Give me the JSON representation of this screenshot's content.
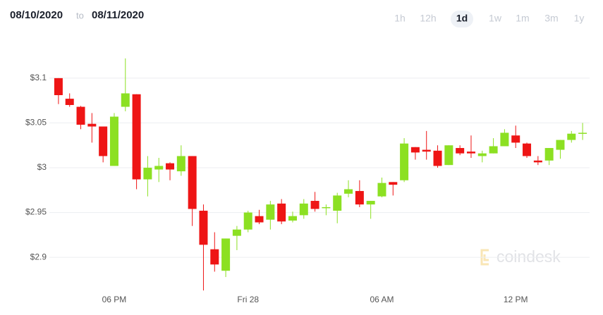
{
  "chart_data": {
    "type": "candlestick",
    "start_date": "08/10/2020",
    "range_separator": "to",
    "end_date": "08/11/2020",
    "range_options": [
      {
        "label": "1h",
        "selected": false
      },
      {
        "label": "12h",
        "selected": false
      },
      {
        "label": "1d",
        "selected": true
      },
      {
        "label": "1w",
        "selected": false
      },
      {
        "label": "1m",
        "selected": false
      },
      {
        "label": "3m",
        "selected": false
      },
      {
        "label": "1y",
        "selected": false
      }
    ],
    "watermark": "coindesk",
    "categories": [
      null,
      null,
      null,
      null,
      null,
      "06 PM",
      null,
      null,
      null,
      null,
      null,
      null,
      null,
      null,
      null,
      null,
      null,
      "Fri 28",
      null,
      null,
      null,
      null,
      null,
      null,
      null,
      null,
      null,
      null,
      null,
      "06 AM",
      null,
      null,
      null,
      null,
      null,
      null,
      null,
      null,
      null,
      null,
      null,
      "12 PM",
      null,
      null,
      null,
      null,
      null,
      null
    ],
    "open": [
      3.1,
      3.077,
      3.068,
      3.049,
      3.046,
      3.002,
      3.068,
      3.082,
      2.987,
      2.998,
      3.005,
      2.996,
      3.013,
      2.952,
      2.909,
      2.885,
      2.924,
      2.931,
      2.946,
      2.942,
      2.96,
      2.941,
      2.947,
      2.963,
      2.955,
      2.952,
      2.971,
      2.974,
      2.959,
      2.968,
      2.984,
      2.986,
      3.023,
      3.02,
      3.019,
      3.003,
      3.022,
      3.018,
      3.013,
      3.016,
      3.024,
      3.036,
      3.027,
      3.008,
      3.008,
      3.02,
      3.031,
      3.038
    ],
    "high": [
      3.1,
      3.083,
      3.069,
      3.061,
      3.046,
      3.061,
      3.122,
      3.082,
      3.013,
      3.011,
      3.006,
      3.025,
      3.013,
      2.959,
      2.928,
      2.921,
      2.935,
      2.952,
      2.953,
      2.963,
      2.965,
      2.951,
      2.965,
      2.973,
      2.959,
      2.972,
      2.986,
      2.986,
      2.963,
      2.989,
      2.984,
      3.033,
      3.023,
      3.041,
      3.025,
      3.025,
      3.025,
      3.036,
      3.019,
      3.033,
      3.043,
      3.047,
      3.028,
      3.013,
      3.022,
      3.031,
      3.041,
      3.05
    ],
    "low": [
      3.071,
      3.068,
      3.043,
      3.028,
      3.006,
      3.002,
      3.063,
      2.976,
      2.968,
      2.984,
      2.986,
      2.991,
      2.935,
      2.863,
      2.884,
      2.878,
      2.908,
      2.928,
      2.937,
      2.931,
      2.937,
      2.939,
      2.943,
      2.951,
      2.947,
      2.938,
      2.967,
      2.956,
      2.943,
      2.967,
      2.969,
      2.984,
      3.009,
      3.009,
      3.0,
      3.003,
      3.014,
      3.011,
      3.006,
      3.016,
      3.024,
      3.022,
      3.011,
      3.003,
      3.003,
      3.01,
      3.028,
      3.031
    ],
    "close": [
      3.081,
      3.07,
      3.048,
      3.046,
      3.013,
      3.057,
      3.083,
      2.987,
      3.0,
      3.002,
      2.998,
      3.013,
      2.954,
      2.914,
      2.892,
      2.921,
      2.931,
      2.95,
      2.939,
      2.959,
      2.94,
      2.946,
      2.96,
      2.954,
      2.956,
      2.969,
      2.976,
      2.959,
      2.963,
      2.983,
      2.981,
      3.027,
      3.017,
      3.018,
      3.002,
      3.025,
      3.016,
      3.016,
      3.016,
      3.024,
      3.039,
      3.028,
      3.013,
      3.006,
      3.022,
      3.031,
      3.038,
      3.039
    ],
    "up_color": "#8ce022",
    "down_color": "#ee1515",
    "ylim": [
      2.86,
      3.14
    ],
    "yticks": [
      {
        "value": 2.9,
        "label": "$2.9"
      },
      {
        "value": 2.95,
        "label": "$2.95"
      },
      {
        "value": 3,
        "label": "$3"
      },
      {
        "value": 3.05,
        "label": "$3.05"
      },
      {
        "value": 3.1,
        "label": "$3.1"
      }
    ],
    "grid": true
  }
}
